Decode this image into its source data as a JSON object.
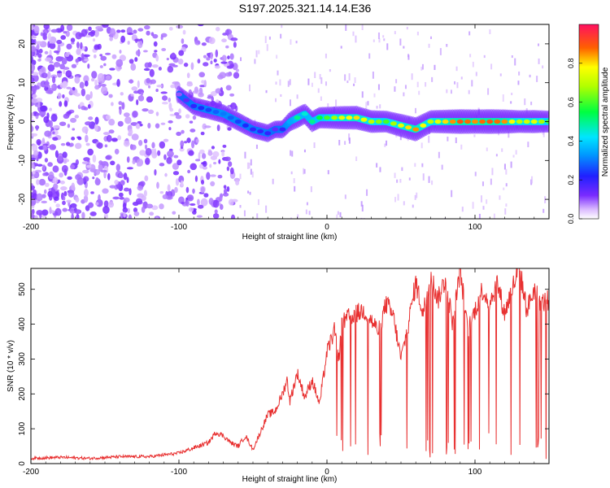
{
  "title": "S197.2025.321.14.14.E36",
  "colors": {
    "snr_line": "#e83030",
    "axis": "#000000"
  },
  "chart_data": [
    {
      "type": "heatmap",
      "name": "spectrogram",
      "xlabel": "Height of straight line (km)",
      "ylabel": "Frequency (Hz)",
      "xlim": [
        -200,
        150
      ],
      "ylim": [
        -25,
        25
      ],
      "xticks": [
        -200,
        -100,
        0,
        100
      ],
      "yticks": [
        -20,
        -10,
        0,
        10,
        20
      ],
      "colorbar": {
        "label": "Normalized spectral amplitude",
        "range": [
          0,
          1
        ],
        "ticks": [
          0.0,
          0.2,
          0.4,
          0.6,
          0.8
        ]
      },
      "ridge": {
        "description": "dominant frequency track",
        "x": [
          -100,
          -90,
          -80,
          -70,
          -60,
          -50,
          -40,
          -35,
          -30,
          -25,
          -20,
          -15,
          -10,
          -5,
          0,
          10,
          20,
          30,
          40,
          50,
          60,
          70,
          80,
          90,
          100,
          110,
          120,
          130,
          140,
          150
        ],
        "y": [
          7,
          4,
          3,
          2,
          0,
          -2,
          -3,
          -2,
          -2,
          0,
          1,
          2,
          0,
          1,
          1,
          1,
          1,
          0,
          0,
          -1,
          -2,
          0,
          0,
          0,
          0,
          0,
          0,
          0,
          0,
          0
        ],
        "peak_amplitude": [
          0.1,
          0.2,
          0.25,
          0.3,
          0.25,
          0.2,
          0.2,
          0.15,
          0.2,
          0.35,
          0.5,
          0.45,
          0.5,
          0.55,
          0.6,
          0.75,
          0.8,
          0.7,
          0.6,
          0.75,
          0.85,
          0.7,
          0.8,
          0.9,
          0.85,
          0.9,
          0.85,
          0.7,
          0.75,
          0.6
        ]
      }
    },
    {
      "type": "line",
      "name": "snr",
      "xlabel": "Height of straight line (km)",
      "ylabel": "SNR (10 * v/v)",
      "xlim": [
        -200,
        150
      ],
      "ylim": [
        0,
        560
      ],
      "xticks": [
        -200,
        -100,
        0,
        100
      ],
      "yticks": [
        0,
        100,
        200,
        300,
        400,
        500
      ],
      "series": [
        {
          "name": "SNR",
          "x": [
            -200,
            -180,
            -160,
            -140,
            -120,
            -110,
            -100,
            -90,
            -80,
            -75,
            -70,
            -65,
            -60,
            -55,
            -50,
            -40,
            -35,
            -30,
            -27,
            -25,
            -20,
            -15,
            -10,
            -5,
            0,
            5,
            8,
            10,
            15,
            20,
            25,
            30,
            35,
            40,
            45,
            50,
            55,
            60,
            65,
            70,
            75,
            80,
            85,
            90,
            95,
            100,
            105,
            110,
            115,
            120,
            125,
            130,
            135,
            140,
            145,
            150
          ],
          "y": [
            15,
            18,
            15,
            20,
            20,
            25,
            30,
            45,
            60,
            90,
            80,
            60,
            50,
            80,
            40,
            140,
            150,
            200,
            240,
            180,
            260,
            190,
            240,
            170,
            320,
            380,
            300,
            400,
            420,
            430,
            440,
            410,
            380,
            460,
            420,
            300,
            400,
            520,
            430,
            540,
            470,
            530,
            400,
            560,
            380,
            440,
            500,
            460,
            520,
            430,
            500,
            560,
            440,
            500,
            460,
            470
          ]
        }
      ]
    }
  ]
}
